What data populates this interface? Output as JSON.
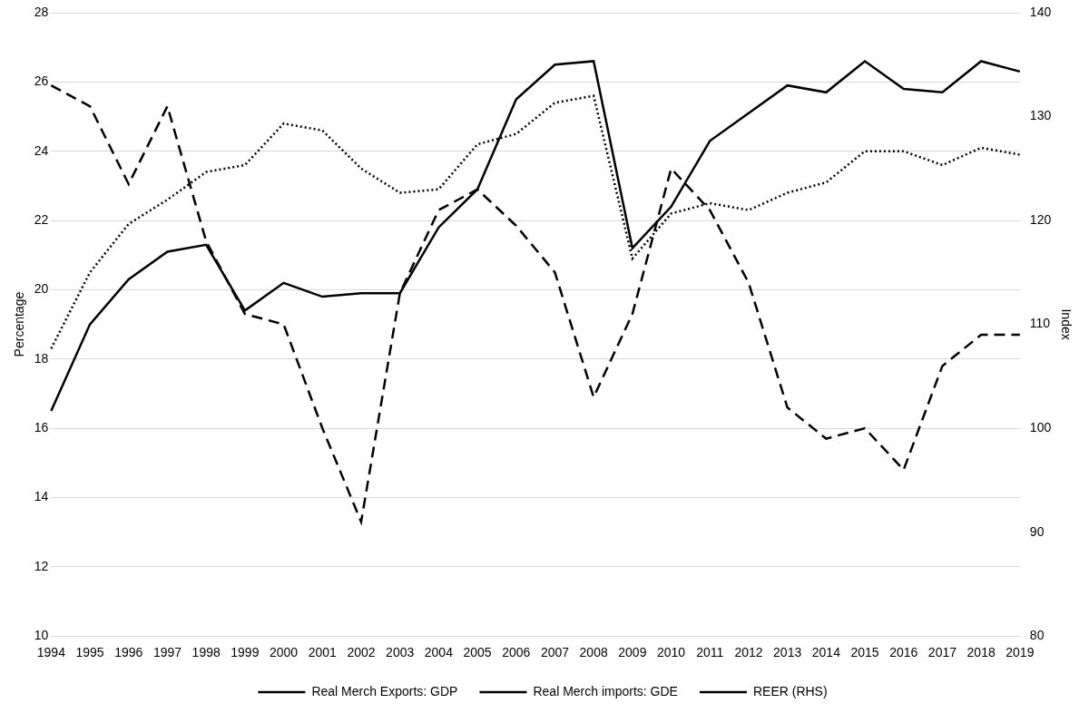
{
  "chart_data": {
    "type": "line",
    "categories": [
      "1994",
      "1995",
      "1996",
      "1997",
      "1998",
      "1999",
      "2000",
      "2001",
      "2002",
      "2003",
      "2004",
      "2005",
      "2006",
      "2007",
      "2008",
      "2009",
      "2010",
      "2011",
      "2012",
      "2013",
      "2014",
      "2015",
      "2016",
      "2017",
      "2018",
      "2019"
    ],
    "series": [
      {
        "name": "Real Merch Exports: GDP",
        "color": "#000000",
        "line_style": "dotted",
        "marker": "none",
        "values": [
          18.3,
          20.5,
          21.9,
          22.6,
          23.4,
          23.6,
          24.8,
          24.6,
          23.5,
          22.8,
          22.9,
          24.2,
          24.5,
          25.4,
          25.6,
          20.9,
          22.2,
          22.5,
          22.3,
          22.8,
          23.1,
          24.0,
          24.0,
          23.6,
          24.1,
          23.9
        ]
      },
      {
        "name": "Real Merch imports: GDE",
        "color": "#000000",
        "line_style": "solid",
        "marker": "none",
        "values": [
          16.5,
          19.0,
          20.3,
          21.1,
          21.3,
          19.4,
          20.2,
          19.8,
          19.9,
          19.9,
          21.8,
          22.9,
          25.5,
          26.5,
          26.6,
          21.2,
          22.4,
          24.3,
          25.1,
          25.9,
          25.7,
          26.6,
          25.8,
          25.7,
          26.6,
          26.3
        ]
      },
      {
        "name": "REER (RHS)",
        "color": "#000000",
        "line_style": "dashed",
        "marker": "none",
        "axis": "y2",
        "values": [
          133,
          131,
          123.5,
          131,
          118,
          111,
          110,
          100,
          91,
          113,
          121,
          123,
          119.5,
          115,
          103,
          111,
          125,
          121,
          114,
          102,
          99,
          100,
          96,
          106,
          109,
          109
        ]
      }
    ],
    "y_label": "Percentage",
    "y2_label": "Index",
    "ylim": [
      10,
      28
    ],
    "yticks": [
      10,
      12,
      14,
      16,
      18,
      20,
      22,
      24,
      26,
      28
    ],
    "y2lim": [
      80,
      140
    ],
    "y2ticks": [
      80,
      90,
      100,
      110,
      120,
      130,
      140
    ],
    "grid": true,
    "legend": "bottom"
  }
}
